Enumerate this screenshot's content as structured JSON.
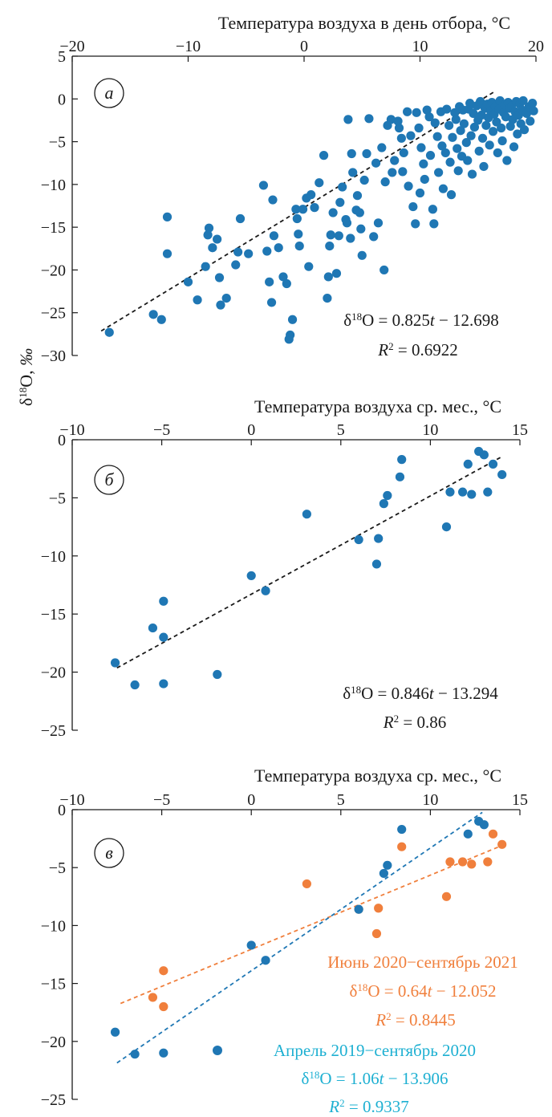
{
  "ylabel": "δ18O, ‰",
  "chart_data": [
    {
      "type": "scatter",
      "panel": "a",
      "xlabel": "Температура воздуха в день отбора, °C",
      "xlim": [
        -20,
        20
      ],
      "xticks": [
        -20,
        -10,
        0,
        10,
        20
      ],
      "ylim": [
        -30,
        5
      ],
      "yticks": [
        5,
        0,
        -5,
        -10,
        -15,
        -20,
        -25,
        -30
      ],
      "point_color": "#1f77b4",
      "line_color": "#1a1a1a",
      "equation": "δ18O = 0.825t − 12.698",
      "r2": "R2 = 0.6922",
      "series": [
        {
          "fit": {
            "slope": 0.825,
            "intercept": -12.698,
            "x_range": [
              -17.5,
              16.5
            ]
          },
          "points": [
            [
              -16.8,
              -27.3
            ],
            [
              -13,
              -25.2
            ],
            [
              -12.3,
              -25.8
            ],
            [
              -11.8,
              -13.8
            ],
            [
              -11.8,
              -18.1
            ],
            [
              -10,
              -21.4
            ],
            [
              -9.2,
              -23.5
            ],
            [
              -8.5,
              -19.6
            ],
            [
              -8.3,
              -15.9
            ],
            [
              -8.2,
              -15.1
            ],
            [
              -7.9,
              -17.4
            ],
            [
              -7.5,
              -16.4
            ],
            [
              -7.3,
              -20.9
            ],
            [
              -7.2,
              -24.1
            ],
            [
              -6.7,
              -23.3
            ],
            [
              -5.9,
              -19.4
            ],
            [
              -5.7,
              -17.9
            ],
            [
              -5.5,
              -14
            ],
            [
              -4.8,
              -18.1
            ],
            [
              -3.5,
              -10.1
            ],
            [
              -3.2,
              -17.8
            ],
            [
              -3,
              -21.4
            ],
            [
              -2.8,
              -23.8
            ],
            [
              -2.7,
              -11.8
            ],
            [
              -2.6,
              -16
            ],
            [
              -2.2,
              -17.4
            ],
            [
              -1.8,
              -20.8
            ],
            [
              -1.5,
              -21.6
            ],
            [
              -1.3,
              -28.1
            ],
            [
              -1.2,
              -27.6
            ],
            [
              -1,
              -25.8
            ],
            [
              -0.7,
              -12.9
            ],
            [
              -0.6,
              -14
            ],
            [
              -0.5,
              -15.8
            ],
            [
              -0.4,
              -17.2
            ],
            [
              -0.1,
              -12.9
            ],
            [
              0.2,
              -11.6
            ],
            [
              0.4,
              -19.6
            ],
            [
              0.6,
              -11.2
            ],
            [
              0.9,
              -12.7
            ],
            [
              1.3,
              -9.8
            ],
            [
              1.7,
              -6.6
            ],
            [
              2,
              -23.3
            ],
            [
              2.1,
              -20.8
            ],
            [
              2.2,
              -17.2
            ],
            [
              2.3,
              -15.9
            ],
            [
              2.5,
              -13.3
            ],
            [
              2.8,
              -20.4
            ],
            [
              3,
              -16
            ],
            [
              3.1,
              -12.1
            ],
            [
              3.3,
              -10.3
            ],
            [
              3.6,
              -14.1
            ],
            [
              3.7,
              -14.5
            ],
            [
              3.8,
              -2.4
            ],
            [
              4,
              -16.3
            ],
            [
              4.1,
              -6.4
            ],
            [
              4.2,
              -8.6
            ],
            [
              4.5,
              -13
            ],
            [
              4.6,
              -11.3
            ],
            [
              4.8,
              -13.3
            ],
            [
              4.9,
              -15.2
            ],
            [
              5,
              -18.3
            ],
            [
              5.2,
              -9.5
            ],
            [
              5.4,
              -6.4
            ],
            [
              5.6,
              -2.3
            ],
            [
              6,
              -16.1
            ],
            [
              6.2,
              -7.5
            ],
            [
              6.4,
              -14.5
            ],
            [
              6.7,
              -5.7
            ],
            [
              6.9,
              -20
            ],
            [
              7,
              -9.7
            ],
            [
              7.2,
              -3.1
            ],
            [
              7.5,
              -2.4
            ],
            [
              7.6,
              -8.6
            ],
            [
              7.8,
              -7.2
            ],
            [
              8.1,
              -2.6
            ],
            [
              8.2,
              -3.4
            ],
            [
              8.4,
              -4.6
            ],
            [
              8.5,
              -8.5
            ],
            [
              8.6,
              -6.3
            ],
            [
              8.9,
              -1.5
            ],
            [
              9,
              -10.2
            ],
            [
              9.2,
              -4.3
            ],
            [
              9.4,
              -12.6
            ],
            [
              9.6,
              -14.6
            ],
            [
              9.7,
              -1.6
            ],
            [
              9.9,
              -3.4
            ],
            [
              10,
              -11
            ],
            [
              10.1,
              -5.7
            ],
            [
              10.3,
              -7.6
            ],
            [
              10.4,
              -9.4
            ],
            [
              10.6,
              -1.3
            ],
            [
              10.8,
              -2.1
            ],
            [
              10.9,
              -6.6
            ],
            [
              11.1,
              -12.9
            ],
            [
              11.2,
              -14.6
            ],
            [
              11.3,
              -2.8
            ],
            [
              11.5,
              -4.4
            ],
            [
              11.6,
              -8.6
            ],
            [
              11.8,
              -1.5
            ],
            [
              11.9,
              -5.5
            ],
            [
              12,
              -10.5
            ],
            [
              12.2,
              -6.3
            ],
            [
              12.3,
              -1.2
            ],
            [
              12.5,
              -3.1
            ],
            [
              12.6,
              -7.4
            ],
            [
              12.7,
              -11.2
            ],
            [
              12.8,
              -4.5
            ],
            [
              13,
              -1.6
            ],
            [
              13.1,
              -2.4
            ],
            [
              13.2,
              -5.8
            ],
            [
              13.3,
              -8.4
            ],
            [
              13.4,
              -0.9
            ],
            [
              13.5,
              -3.7
            ],
            [
              13.6,
              -6.7
            ],
            [
              13.7,
              -1.3
            ],
            [
              13.8,
              -2.9
            ],
            [
              14,
              -5.1
            ],
            [
              14.1,
              -7.2
            ],
            [
              14.2,
              -1.2
            ],
            [
              14.3,
              -0.5
            ],
            [
              14.4,
              -4.3
            ],
            [
              14.5,
              -8.8
            ],
            [
              14.6,
              -1.7
            ],
            [
              14.7,
              -3.3
            ],
            [
              14.9,
              -0.8
            ],
            [
              15,
              -2.5
            ],
            [
              15.1,
              -6.1
            ],
            [
              15.2,
              -0.3
            ],
            [
              15.3,
              -1.9
            ],
            [
              15.4,
              -4.6
            ],
            [
              15.5,
              -7.9
            ],
            [
              15.6,
              -1.1
            ],
            [
              15.7,
              -3.1
            ],
            [
              15.8,
              -0.6
            ],
            [
              15.9,
              -2.2
            ],
            [
              16,
              -5.4
            ],
            [
              16.1,
              -1.4
            ],
            [
              16.2,
              -0.4
            ],
            [
              16.3,
              -3.8
            ],
            [
              16.4,
              -1.8
            ],
            [
              16.5,
              -0.9
            ],
            [
              16.6,
              -2.7
            ],
            [
              16.7,
              -6.3
            ],
            [
              16.8,
              -1.2
            ],
            [
              16.9,
              -0.2
            ],
            [
              17,
              -3.4
            ],
            [
              17.1,
              -4.9
            ],
            [
              17.2,
              -1.6
            ],
            [
              17.3,
              -0.7
            ],
            [
              17.4,
              -2.1
            ],
            [
              17.5,
              -7.2
            ],
            [
              17.6,
              -0.4
            ],
            [
              17.7,
              -1.1
            ],
            [
              17.8,
              -3.2
            ],
            [
              17.9,
              -0.8
            ],
            [
              18,
              -2.4
            ],
            [
              18.1,
              -5.6
            ],
            [
              18.2,
              -1.5
            ],
            [
              18.3,
              -0.3
            ],
            [
              18.4,
              -4.1
            ],
            [
              18.5,
              -1.9
            ],
            [
              18.6,
              -0.6
            ],
            [
              18.7,
              -2.9
            ],
            [
              18.8,
              -1.3
            ],
            [
              18.9,
              -0.2
            ],
            [
              19,
              -3.6
            ],
            [
              19.2,
              -1.7
            ],
            [
              19.4,
              -0.9
            ],
            [
              19.5,
              -2.6
            ],
            [
              19.7,
              -0.5
            ],
            [
              19.8,
              -1.4
            ]
          ]
        }
      ]
    },
    {
      "type": "scatter",
      "panel": "б",
      "xlabel": "Температура воздуха ср. мес., °C",
      "xlim": [
        -10,
        15
      ],
      "xticks": [
        -10,
        -5,
        0,
        5,
        10,
        15
      ],
      "ylim": [
        -25,
        0
      ],
      "yticks": [
        0,
        -5,
        -10,
        -15,
        -20,
        -25
      ],
      "point_color": "#1f77b4",
      "line_color": "#1a1a1a",
      "equation": "δ18O = 0.846t − 13.294",
      "r2": "R2 = 0.86",
      "series": [
        {
          "fit": {
            "slope": 0.846,
            "intercept": -13.294,
            "x_range": [
              -7.5,
              14
            ]
          },
          "points": [
            [
              -7.6,
              -19.2
            ],
            [
              -6.5,
              -21.1
            ],
            [
              -5.5,
              -16.2
            ],
            [
              -4.9,
              -13.9
            ],
            [
              -4.9,
              -17
            ],
            [
              -4.9,
              -21
            ],
            [
              -1.9,
              -20.2
            ],
            [
              0,
              -11.7
            ],
            [
              0.8,
              -13
            ],
            [
              3.1,
              -6.4
            ],
            [
              6,
              -8.6
            ],
            [
              7,
              -10.7
            ],
            [
              7.1,
              -8.5
            ],
            [
              7.4,
              -5.5
            ],
            [
              7.6,
              -4.8
            ],
            [
              8.3,
              -3.2
            ],
            [
              8.4,
              -1.7
            ],
            [
              10.9,
              -7.5
            ],
            [
              11.1,
              -4.5
            ],
            [
              11.8,
              -4.5
            ],
            [
              12.1,
              -2.1
            ],
            [
              12.3,
              -4.7
            ],
            [
              12.7,
              -1
            ],
            [
              13.0,
              -1.3
            ],
            [
              13.2,
              -4.5
            ],
            [
              13.5,
              -2.1
            ],
            [
              14,
              -3
            ]
          ]
        }
      ]
    },
    {
      "type": "scatter",
      "panel": "в",
      "xlabel": "Температура воздуха ср. мес., °C",
      "xlim": [
        -10,
        15
      ],
      "xticks": [
        -10,
        -5,
        0,
        5,
        10,
        15
      ],
      "ylim": [
        -25,
        0
      ],
      "yticks": [
        0,
        -5,
        -10,
        -15,
        -20,
        -25
      ],
      "series": [
        {
          "name": "Июнь 2020−сентябрь 2021",
          "color": "#f07f3c",
          "equation": "δ18O = 0.64t − 12.052",
          "r2": "R2 = 0.8445",
          "fit": {
            "slope": 0.64,
            "intercept": -12.052,
            "x_range": [
              -7.3,
              14
            ]
          },
          "points": [
            [
              -5.5,
              -16.2
            ],
            [
              -4.9,
              -13.9
            ],
            [
              -4.9,
              -17
            ],
            [
              3.1,
              -6.4
            ],
            [
              6,
              -8.6
            ],
            [
              7,
              -10.7
            ],
            [
              7.1,
              -8.5
            ],
            [
              8.4,
              -3.2
            ],
            [
              10.9,
              -7.5
            ],
            [
              11.1,
              -4.5
            ],
            [
              11.8,
              -4.5
            ],
            [
              12.3,
              -4.7
            ],
            [
              13.2,
              -4.5
            ],
            [
              13.5,
              -2.1
            ],
            [
              14,
              -3
            ]
          ]
        },
        {
          "name": "Апрель 2019−сентябрь 2020",
          "color": "#1f77b4",
          "equation": "δ18O = 1.06t − 13.906",
          "r2": "R2 = 0.9337",
          "fit": {
            "slope": 1.06,
            "intercept": -13.906,
            "x_range": [
              -7.5,
              12.9
            ]
          },
          "points": [
            [
              -7.6,
              -19.2
            ],
            [
              -6.5,
              -21.1
            ],
            [
              -4.9,
              -21
            ],
            [
              0,
              -11.7
            ],
            [
              0.8,
              -13
            ],
            [
              6,
              -8.6
            ],
            [
              7.4,
              -5.5
            ],
            [
              7.6,
              -4.8
            ],
            [
              8.4,
              -1.7
            ],
            [
              12.1,
              -2.1
            ],
            [
              12.7,
              -1
            ],
            [
              13.0,
              -1.3
            ]
          ]
        }
      ]
    }
  ]
}
